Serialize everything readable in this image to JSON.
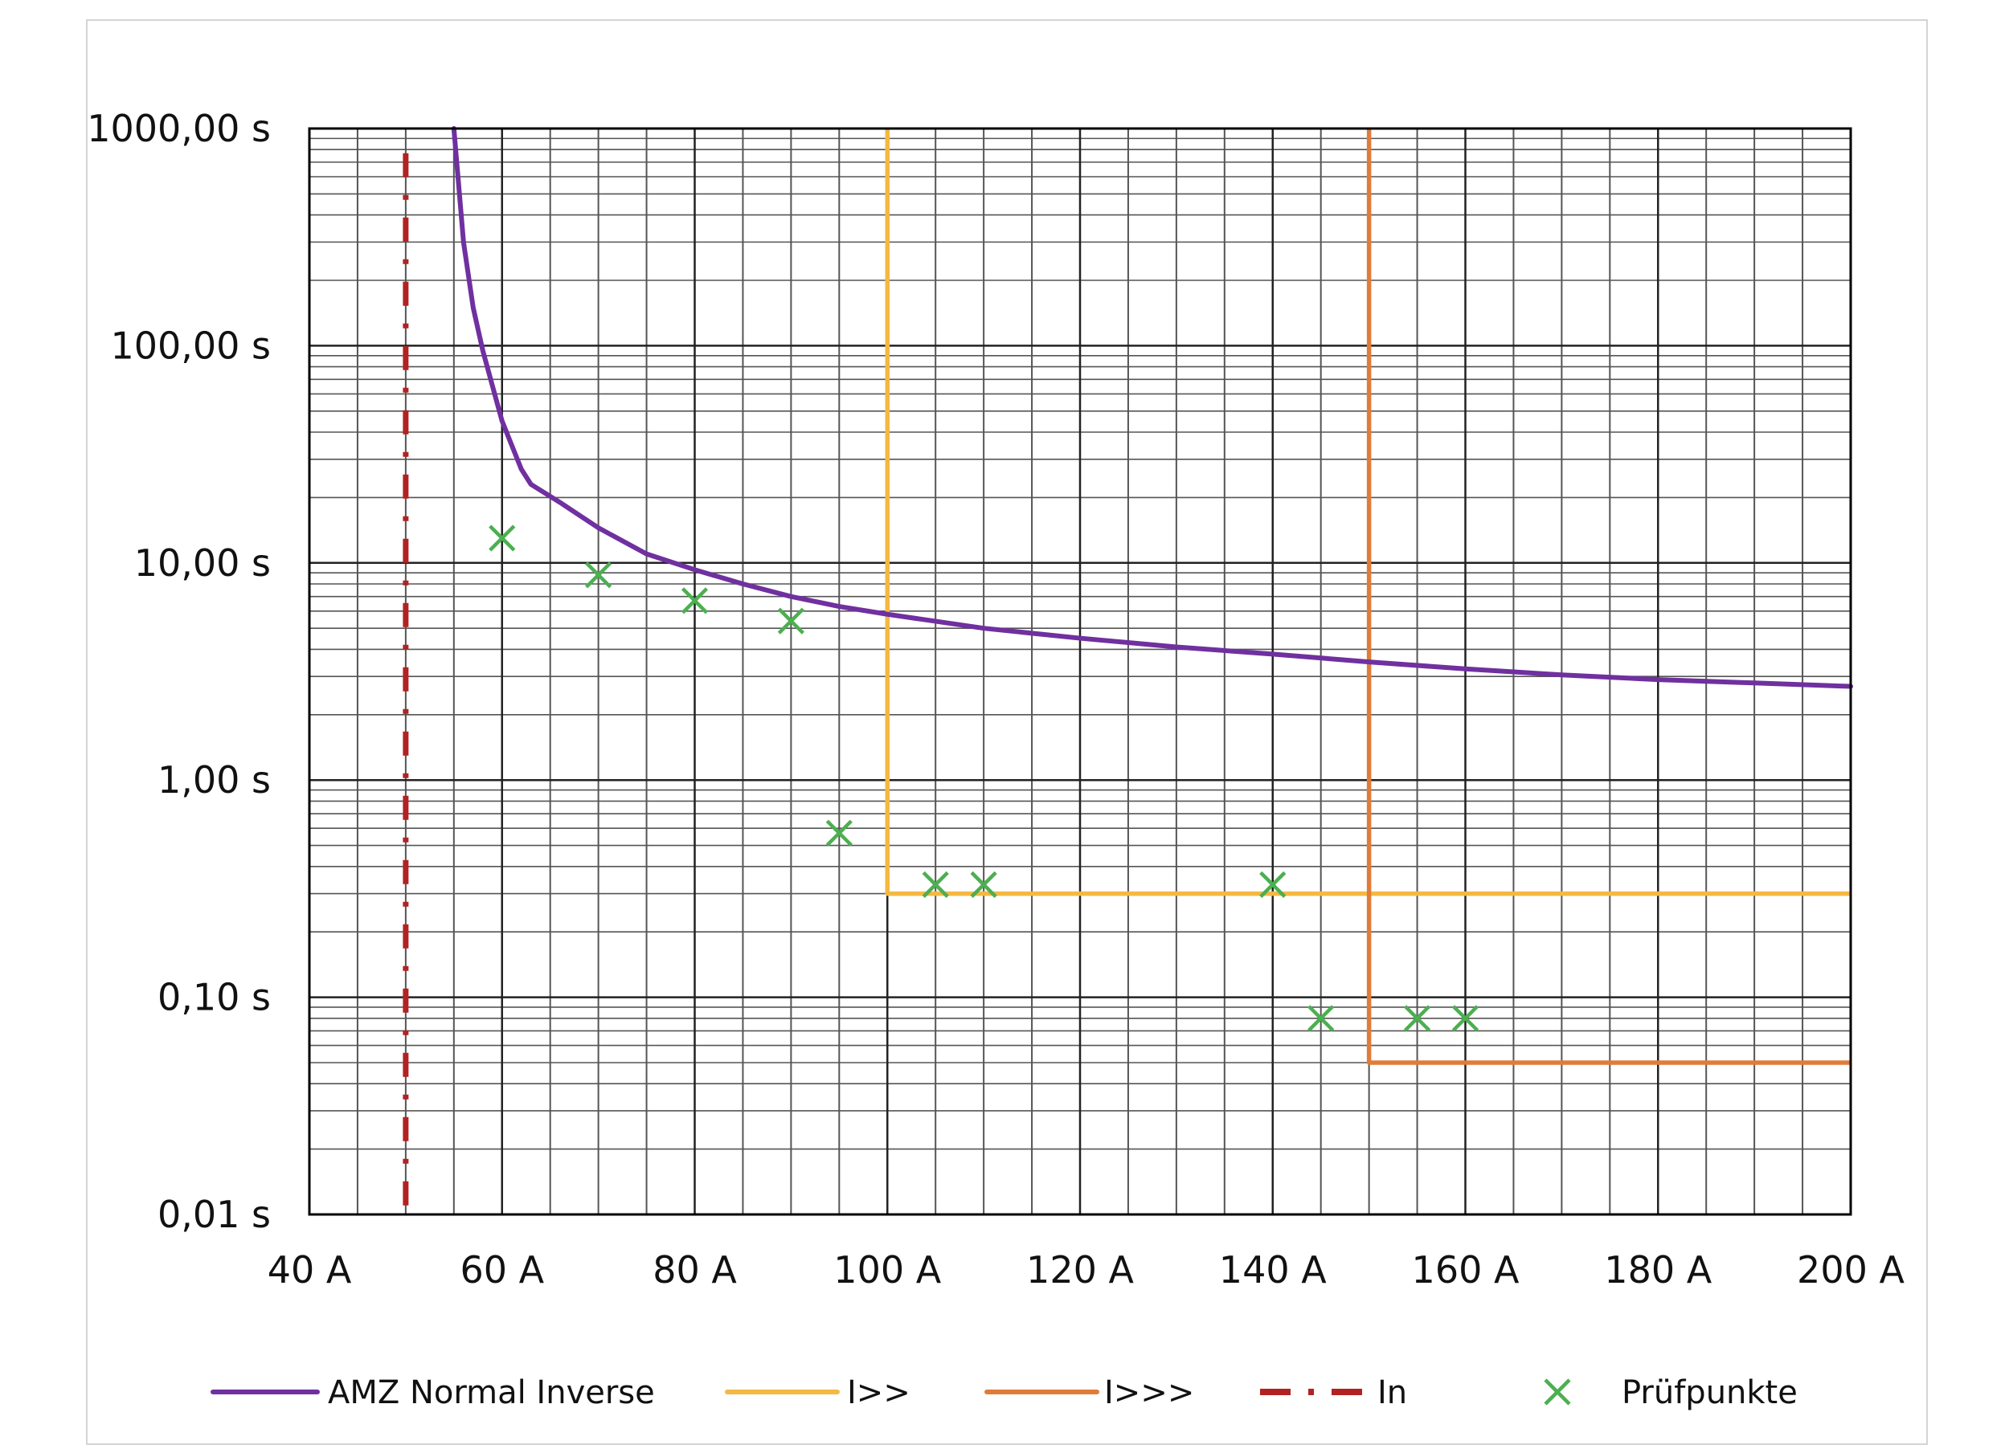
{
  "chart_data": {
    "type": "line",
    "title": "",
    "xlabel": "",
    "ylabel": "",
    "x_axis": {
      "min": 40,
      "max": 200,
      "major_step": 20,
      "minor_step": 5,
      "tick_labels": [
        "40 A",
        "60 A",
        "80 A",
        "100 A",
        "120 A",
        "140 A",
        "160 A",
        "180 A",
        "200 A"
      ]
    },
    "y_axis": {
      "scale": "log",
      "min": 0.01,
      "max": 1000,
      "tick_values": [
        0.01,
        0.1,
        1,
        10,
        100,
        1000
      ],
      "tick_labels": [
        "0,01 s",
        "0,10 s",
        "1,00 s",
        "10,00 s",
        "100,00 s",
        "1000,00 s"
      ]
    },
    "grid": true,
    "legend_position": "bottom",
    "series": [
      {
        "name": "AMZ Normal Inverse",
        "style": "solid",
        "color": "#7030a0",
        "points": [
          [
            55,
            1000
          ],
          [
            56,
            300
          ],
          [
            57,
            150
          ],
          [
            58,
            95
          ],
          [
            60,
            45
          ],
          [
            62,
            27
          ],
          [
            63,
            23
          ],
          [
            66,
            19
          ],
          [
            70,
            14.5
          ],
          [
            75,
            11
          ],
          [
            80,
            9.3
          ],
          [
            85,
            8
          ],
          [
            90,
            7
          ],
          [
            95,
            6.3
          ],
          [
            100,
            5.8
          ],
          [
            110,
            5
          ],
          [
            120,
            4.5
          ],
          [
            130,
            4.1
          ],
          [
            140,
            3.8
          ],
          [
            150,
            3.5
          ],
          [
            160,
            3.25
          ],
          [
            170,
            3.05
          ],
          [
            180,
            2.9
          ],
          [
            190,
            2.8
          ],
          [
            200,
            2.7
          ]
        ]
      },
      {
        "name": "I>>",
        "style": "solid",
        "color": "#f4b942",
        "points": [
          [
            100,
            1000
          ],
          [
            100,
            0.3
          ],
          [
            200,
            0.3
          ]
        ]
      },
      {
        "name": "I>>>",
        "style": "solid",
        "color": "#e07c3a",
        "points": [
          [
            150,
            1000
          ],
          [
            150,
            0.05
          ],
          [
            200,
            0.05
          ]
        ]
      },
      {
        "name": "In",
        "style": "dash-dot",
        "color": "#b22222",
        "points": [
          [
            50,
            0.011
          ],
          [
            50,
            800
          ]
        ]
      },
      {
        "name": "Prüfpunkte",
        "style": "markers",
        "color": "#4caf50",
        "points": [
          [
            60,
            13
          ],
          [
            70,
            8.8
          ],
          [
            80,
            6.7
          ],
          [
            90,
            5.4
          ],
          [
            95,
            0.57
          ],
          [
            105,
            0.33
          ],
          [
            110,
            0.33
          ],
          [
            140,
            0.33
          ],
          [
            145,
            0.08
          ],
          [
            155,
            0.08
          ],
          [
            160,
            0.08
          ]
        ]
      }
    ]
  }
}
